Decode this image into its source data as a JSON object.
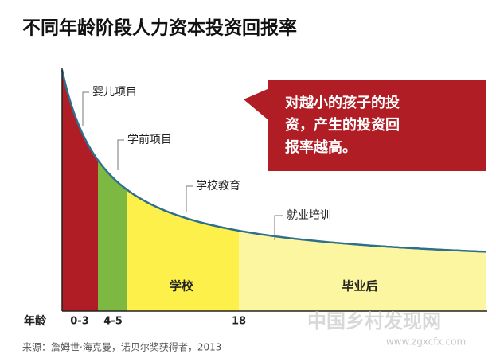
{
  "title": "不同年龄阶段人力资本投资回报率",
  "labels": [
    "婴儿项目",
    "学前项目",
    "学校教育",
    "就业培训"
  ],
  "callout": [
    "对越小的孩子的投",
    "资，产生的投资回",
    "报率越高。"
  ],
  "regions": [
    "学校",
    "毕业后"
  ],
  "axis": {
    "label": "年龄",
    "ticks": [
      "0-3",
      "4-5",
      "18"
    ]
  },
  "source": "来源：詹姆世·海克曼，诺贝尔奖获得者，2013",
  "watermark": [
    "中国乡村发现网",
    "www.zgxcfx.com"
  ]
}
